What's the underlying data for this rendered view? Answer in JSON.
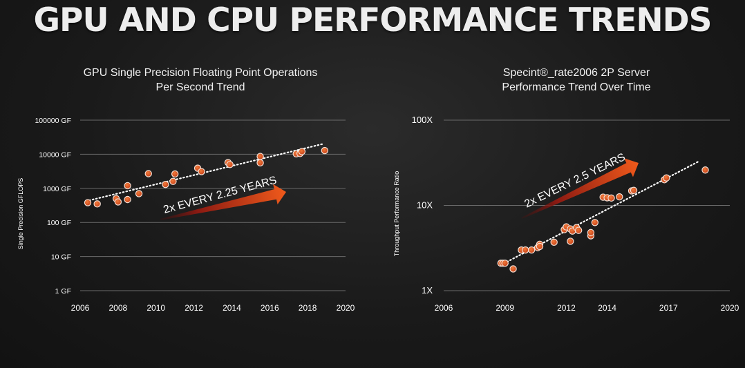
{
  "slide": {
    "title": "GPU AND CPU PERFORMANCE TRENDS"
  },
  "gpu_chart": {
    "title_line1": "GPU Single Precision Floating Point Operations",
    "title_line2": "Per Second Trend",
    "annotation": "2x EVERY 2.25 YEARS"
  },
  "cpu_chart": {
    "title_line1": "Specint®_rate2006 2P Server",
    "title_line2": "Performance Trend Over Time",
    "annotation": "2x EVERY 2.5 YEARS"
  },
  "colors": {
    "point_fill": "#d9531e",
    "point_stroke": "#f3e1d6",
    "trend_line": "#ffffff",
    "arrow_start": "#7a1510",
    "arrow_end": "#e8551a"
  },
  "chart_data": [
    {
      "type": "scatter",
      "title": "GPU Single Precision Floating Point Operations Per Second Trend",
      "xlabel": "",
      "ylabel": "Single Precision GFLOPS",
      "xlim": [
        2006,
        2020
      ],
      "ylim": [
        1,
        100000
      ],
      "yscale": "log",
      "grid": true,
      "xticks": [
        2006,
        2008,
        2010,
        2012,
        2014,
        2016,
        2018,
        2020
      ],
      "yticks": [
        1,
        10,
        100,
        1000,
        10000,
        100000
      ],
      "ytick_labels": [
        "1 GF",
        "10 GF",
        "100 GF",
        "1000 GF",
        "10000 GF",
        "100000 GF"
      ],
      "points": [
        [
          2006.4,
          380
        ],
        [
          2006.9,
          350
        ],
        [
          2007.9,
          500
        ],
        [
          2008.0,
          400
        ],
        [
          2008.5,
          1200
        ],
        [
          2008.5,
          470
        ],
        [
          2009.1,
          700
        ],
        [
          2009.6,
          2700
        ],
        [
          2010.5,
          1300
        ],
        [
          2010.9,
          1600
        ],
        [
          2011.0,
          2650
        ],
        [
          2012.2,
          3900
        ],
        [
          2012.4,
          3100
        ],
        [
          2013.8,
          5700
        ],
        [
          2013.9,
          5000
        ],
        [
          2015.5,
          8600
        ],
        [
          2015.5,
          5600
        ],
        [
          2017.4,
          10300
        ],
        [
          2017.6,
          10500
        ],
        [
          2017.7,
          12000
        ],
        [
          2018.9,
          12800
        ]
      ],
      "trend": {
        "x": [
          2006.3,
          2018.8
        ],
        "y": [
          420,
          20000
        ]
      },
      "annotation": "2x EVERY 2.25 YEARS"
    },
    {
      "type": "scatter",
      "title": "Specint®_rate2006 2P Server Performance Trend Over Time",
      "xlabel": "",
      "ylabel": "Throughput Performance Ratio",
      "xlim": [
        2006,
        2020
      ],
      "ylim": [
        1,
        100
      ],
      "yscale": "log",
      "grid": true,
      "xticks": [
        2006,
        2009,
        2012,
        2014,
        2017,
        2020
      ],
      "yticks": [
        1,
        10,
        100
      ],
      "ytick_labels": [
        "1X",
        "10X",
        "100X"
      ],
      "points": [
        [
          2008.8,
          2.1
        ],
        [
          2008.9,
          2.1
        ],
        [
          2009.0,
          2.1
        ],
        [
          2009.4,
          1.8
        ],
        [
          2009.8,
          3.0
        ],
        [
          2010.0,
          3.0
        ],
        [
          2010.3,
          3.0
        ],
        [
          2010.6,
          3.2
        ],
        [
          2010.7,
          3.5
        ],
        [
          2010.7,
          3.3
        ],
        [
          2011.4,
          3.7
        ],
        [
          2011.9,
          5.2
        ],
        [
          2012.0,
          5.6
        ],
        [
          2012.2,
          3.8
        ],
        [
          2012.2,
          5.3
        ],
        [
          2012.3,
          5.0
        ],
        [
          2012.5,
          5.5
        ],
        [
          2012.6,
          5.1
        ],
        [
          2013.2,
          4.4
        ],
        [
          2013.2,
          4.8
        ],
        [
          2013.4,
          6.3
        ],
        [
          2013.8,
          12.5
        ],
        [
          2014.0,
          12.3
        ],
        [
          2014.2,
          12.2
        ],
        [
          2014.6,
          12.6
        ],
        [
          2015.2,
          14.8
        ],
        [
          2015.3,
          15.0
        ],
        [
          2016.8,
          20.0
        ],
        [
          2016.9,
          21.0
        ],
        [
          2018.8,
          26.0
        ]
      ],
      "trend": {
        "x": [
          2008.8,
          2018.5
        ],
        "y": [
          2.0,
          33.0
        ]
      },
      "annotation": "2x EVERY 2.5 YEARS"
    }
  ]
}
